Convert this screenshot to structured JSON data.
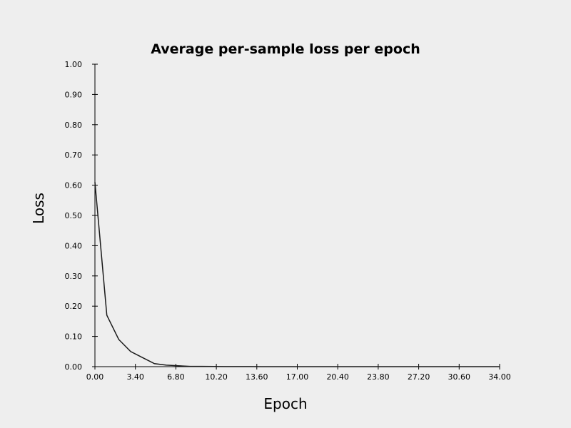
{
  "chart_data": {
    "type": "line",
    "title": "Average per-sample loss per epoch",
    "xlabel": "Epoch",
    "ylabel": "Loss",
    "xlim": [
      0,
      34
    ],
    "ylim": [
      0,
      1
    ],
    "x_ticks": [
      "0.00",
      "3.40",
      "6.80",
      "10.20",
      "13.60",
      "17.00",
      "20.40",
      "23.80",
      "27.20",
      "30.60",
      "34.00"
    ],
    "y_ticks": [
      "0.00",
      "0.10",
      "0.20",
      "0.30",
      "0.40",
      "0.50",
      "0.60",
      "0.70",
      "0.80",
      "0.90",
      "1.00"
    ],
    "grid": false,
    "legend": "none",
    "series": [
      {
        "x": [
          0,
          1,
          2,
          3,
          4,
          5,
          6,
          7,
          8,
          9,
          10,
          11,
          12,
          13,
          14,
          15,
          16,
          17,
          18,
          19,
          20,
          21,
          22,
          23,
          24,
          25,
          26,
          27,
          28,
          29,
          30,
          31,
          32,
          33,
          34
        ],
        "values": [
          0.61,
          0.17,
          0.09,
          0.05,
          0.03,
          0.01,
          0.005,
          0.003,
          0.001,
          0.001,
          0.0005,
          0.0003,
          0.0002,
          0.0002,
          0.0001,
          0.0001,
          0.0001,
          0.0001,
          0.0001,
          0.0001,
          0.0001,
          0.0001,
          0.0001,
          0.0001,
          0.0001,
          0.0001,
          0.0001,
          0.0001,
          0.0001,
          0.0001,
          0.0001,
          0.0001,
          0.0001,
          0.0001,
          0.0001
        ]
      }
    ]
  }
}
